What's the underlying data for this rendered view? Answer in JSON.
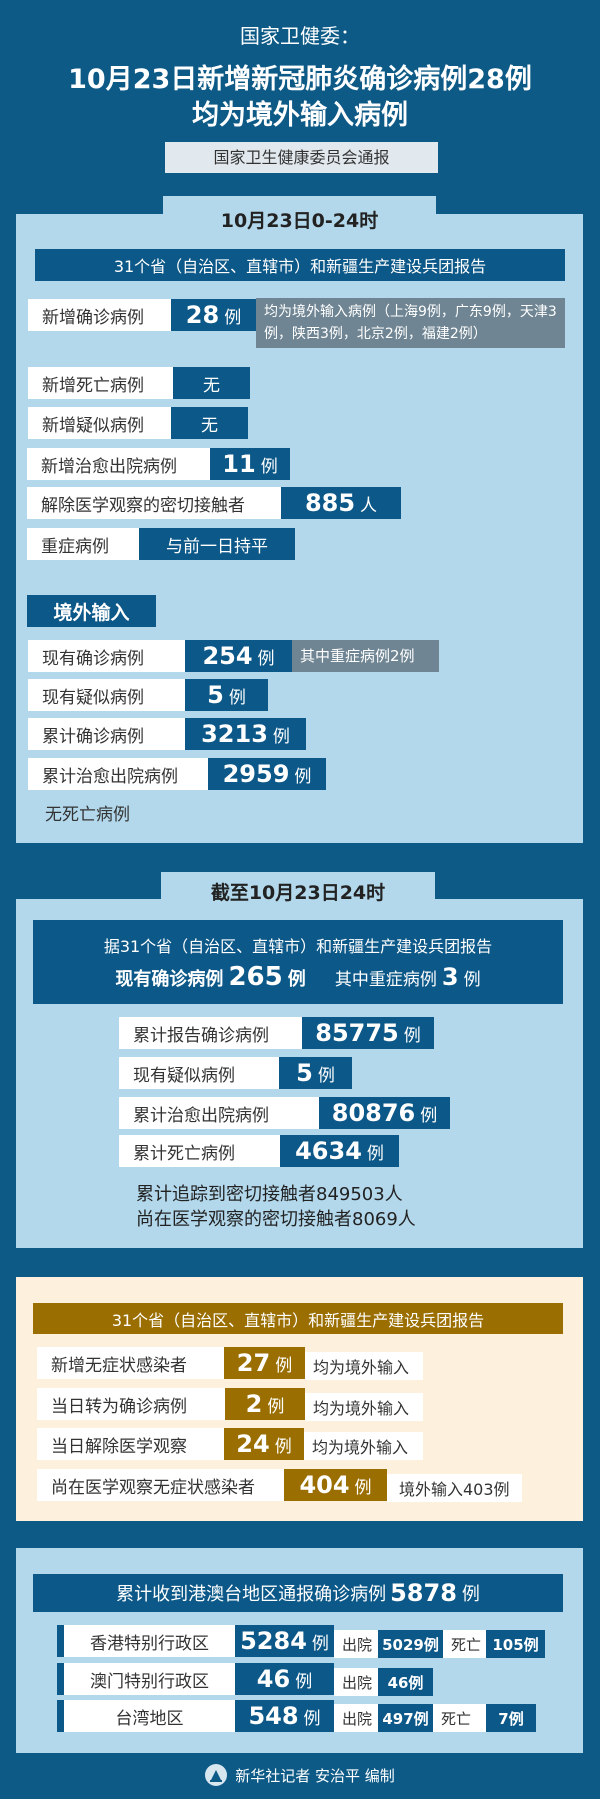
{
  "header": {
    "kicker": "国家卫健委：",
    "title_line1": "10月23日新增新冠肺炎确诊病例28例",
    "title_line2": "均为境外输入病例",
    "source": "国家卫生健康委员会通报"
  },
  "daily": {
    "tab": "10月23日0-24时",
    "banner": "31个省（自治区、直辖市）和新疆生产建设兵团报告",
    "rows": [
      {
        "label": "新增确诊病例",
        "value": "28",
        "unit": "例",
        "note": "均为境外输入病例（上海9例，广东9例，天津3例，陕西3例，北京2例，福建2例）"
      },
      {
        "label": "新增死亡病例",
        "value": "无"
      },
      {
        "label": "新增疑似病例",
        "value": "无"
      },
      {
        "label": "新增治愈出院病例",
        "value": "11",
        "unit": "例"
      },
      {
        "label": "解除医学观察的密切接触者",
        "value": "885",
        "unit": "人"
      },
      {
        "label": "重症病例",
        "value": "与前一日持平"
      }
    ],
    "imported": {
      "title": "境外输入",
      "rows": [
        {
          "label": "现有确诊病例",
          "value": "254",
          "unit": "例",
          "note": "其中重症病例2例"
        },
        {
          "label": "现有疑似病例",
          "value": "5",
          "unit": "例"
        },
        {
          "label": "累计确诊病例",
          "value": "3213",
          "unit": "例"
        },
        {
          "label": "累计治愈出院病例",
          "value": "2959",
          "unit": "例"
        }
      ],
      "footnote": "无死亡病例"
    }
  },
  "cumulative": {
    "tab": "截至10月23日24时",
    "banner": "据31个省（自治区、直辖市）和新疆生产建设兵团报告",
    "current_label": "现有确诊病例",
    "current_value": "265",
    "current_unit": "例",
    "severe_label": "其中重症病例",
    "severe_value": "3",
    "severe_unit": "例",
    "rows": [
      {
        "label": "累计报告确诊病例",
        "value": "85775",
        "unit": "例"
      },
      {
        "label": "现有疑似病例",
        "value": "5",
        "unit": "例"
      },
      {
        "label": "累计治愈出院病例",
        "value": "80876",
        "unit": "例"
      },
      {
        "label": "累计死亡病例",
        "value": "4634",
        "unit": "例"
      }
    ],
    "line1": "累计追踪到密切接触者849503人",
    "line2": "尚在医学观察的密切接触者8069人"
  },
  "asymptomatic": {
    "banner": "31个省（自治区、直辖市）和新疆生产建设兵团报告",
    "rows": [
      {
        "label": "新增无症状感染者",
        "value": "27",
        "unit": "例",
        "note": "均为境外输入"
      },
      {
        "label": "当日转为确诊病例",
        "value": "2",
        "unit": "例",
        "note": "均为境外输入"
      },
      {
        "label": "当日解除医学观察",
        "value": "24",
        "unit": "例",
        "note": "均为境外输入"
      },
      {
        "label": "尚在医学观察无症状感染者",
        "value": "404",
        "unit": "例",
        "note": "境外输入403例"
      }
    ]
  },
  "hmt": {
    "banner_text": "累计收到港澳台地区通报确诊病例",
    "banner_value": "5878",
    "banner_unit": "例",
    "discharged_label": "出院",
    "death_label": "死亡",
    "rows": [
      {
        "region": "香港特别行政区",
        "value": "5284",
        "unit": "例",
        "discharged": "5029例",
        "deaths": "105例"
      },
      {
        "region": "澳门特别行政区",
        "value": "46",
        "unit": "例",
        "discharged": "46例"
      },
      {
        "region": "台湾地区",
        "value": "548",
        "unit": "例",
        "discharged": "497例",
        "deaths": "7例"
      }
    ]
  },
  "footer": {
    "credit": "新华社记者 安治平 编制",
    "logo_icon": "xinhua-logo-icon"
  },
  "colors": {
    "background": "#0d5a87",
    "panel": "#b3d8ec",
    "bar": "#0c5888",
    "gold": "#9a6e00",
    "cream": "#fdf0dc",
    "note": "#6f8593"
  }
}
